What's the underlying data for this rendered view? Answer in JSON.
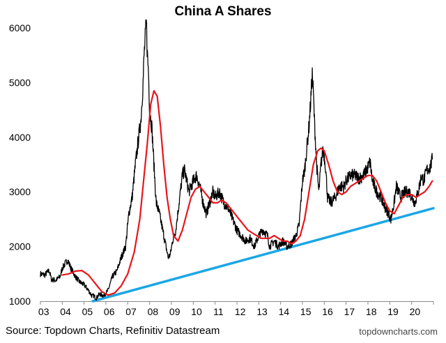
{
  "chart_data": {
    "type": "line",
    "title": "China A Shares",
    "xlabel": "",
    "ylabel": "",
    "xlim": [
      2003.0,
      2021.0
    ],
    "ylim": [
      1000,
      6000
    ],
    "x_tick_labels": [
      "03",
      "04",
      "05",
      "06",
      "07",
      "08",
      "09",
      "10",
      "11",
      "12",
      "13",
      "14",
      "15",
      "16",
      "17",
      "18",
      "19",
      "20"
    ],
    "y_ticks": [
      1000,
      2000,
      3000,
      4000,
      5000,
      6000
    ],
    "grid": false,
    "legend": "none",
    "colors": {
      "price": "#000000",
      "moving_average": "#e8151b",
      "trendline": "#1aa6e6"
    },
    "series": [
      {
        "key": "price",
        "x": [
          2003.0,
          2003.2,
          2003.4,
          2003.5,
          2003.7,
          2003.9,
          2004.0,
          2004.15,
          2004.25,
          2004.4,
          2004.6,
          2004.8,
          2005.0,
          2005.2,
          2005.35,
          2005.45,
          2005.55,
          2005.7,
          2005.9,
          2006.1,
          2006.3,
          2006.5,
          2006.7,
          2006.9,
          2007.05,
          2007.2,
          2007.35,
          2007.5,
          2007.6,
          2007.7,
          2007.75,
          2007.8,
          2007.85,
          2007.9,
          2007.95,
          2008.0,
          2008.1,
          2008.2,
          2008.3,
          2008.45,
          2008.6,
          2008.75,
          2008.85,
          2008.95,
          2009.05,
          2009.2,
          2009.35,
          2009.5,
          2009.6,
          2009.7,
          2009.8,
          2009.9,
          2010.0,
          2010.15,
          2010.3,
          2010.45,
          2010.6,
          2010.75,
          2010.9,
          2011.0,
          2011.2,
          2011.4,
          2011.6,
          2011.8,
          2012.0,
          2012.2,
          2012.4,
          2012.6,
          2012.8,
          2013.0,
          2013.2,
          2013.4,
          2013.5,
          2013.7,
          2013.9,
          2014.1,
          2014.3,
          2014.5,
          2014.7,
          2014.85,
          2015.0,
          2015.1,
          2015.2,
          2015.3,
          2015.4,
          2015.45,
          2015.5,
          2015.55,
          2015.65,
          2015.75,
          2015.85,
          2015.95,
          2016.05,
          2016.15,
          2016.3,
          2016.5,
          2016.7,
          2016.9,
          2017.0,
          2017.2,
          2017.4,
          2017.6,
          2017.8,
          2018.0,
          2018.1,
          2018.2,
          2018.4,
          2018.6,
          2018.8,
          2018.95,
          2019.05,
          2019.2,
          2019.3,
          2019.5,
          2019.7,
          2019.9,
          2020.0,
          2020.15,
          2020.3,
          2020.45,
          2020.55,
          2020.7,
          2020.85,
          2020.95
        ],
        "y": [
          1500,
          1480,
          1560,
          1400,
          1380,
          1450,
          1600,
          1700,
          1750,
          1600,
          1450,
          1350,
          1300,
          1200,
          1100,
          1100,
          1050,
          1130,
          1100,
          1200,
          1450,
          1550,
          1800,
          2000,
          2600,
          2900,
          3500,
          4000,
          4300,
          5000,
          5500,
          5800,
          6100,
          5500,
          5200,
          4500,
          4200,
          3500,
          2800,
          2600,
          2300,
          2000,
          1800,
          1850,
          2100,
          2300,
          2800,
          3300,
          3400,
          3200,
          3000,
          3100,
          3200,
          3300,
          3100,
          2800,
          2600,
          2800,
          3000,
          2900,
          3000,
          2800,
          2700,
          2500,
          2300,
          2200,
          2100,
          2150,
          2000,
          2200,
          2300,
          2200,
          2000,
          2100,
          2000,
          2100,
          2000,
          2050,
          2200,
          2400,
          3200,
          3400,
          3800,
          4200,
          4800,
          5150,
          4800,
          4300,
          3500,
          3000,
          3500,
          3800,
          3500,
          2900,
          2800,
          2900,
          3100,
          3100,
          3200,
          3300,
          3300,
          3250,
          3300,
          3450,
          3550,
          3200,
          3000,
          2900,
          2700,
          2600,
          2500,
          2800,
          3100,
          2900,
          3000,
          3000,
          2900,
          2800,
          3000,
          3300,
          3200,
          3400,
          3450,
          3600
        ]
      },
      {
        "key": "moving_average",
        "x": [
          2004.0,
          2004.3,
          2004.6,
          2004.9,
          2005.2,
          2005.5,
          2005.8,
          2006.1,
          2006.4,
          2006.7,
          2007.0,
          2007.3,
          2007.55,
          2007.75,
          2007.9,
          2008.05,
          2008.2,
          2008.35,
          2008.5,
          2008.65,
          2008.8,
          2008.95,
          2009.1,
          2009.3,
          2009.5,
          2009.7,
          2009.9,
          2010.1,
          2010.3,
          2010.5,
          2010.7,
          2010.9,
          2011.1,
          2011.3,
          2011.5,
          2011.7,
          2011.9,
          2012.1,
          2012.3,
          2012.5,
          2012.7,
          2012.9,
          2013.1,
          2013.3,
          2013.5,
          2013.7,
          2013.9,
          2014.1,
          2014.3,
          2014.5,
          2014.7,
          2014.9,
          2015.1,
          2015.3,
          2015.5,
          2015.7,
          2015.85,
          2016.0,
          2016.2,
          2016.4,
          2016.6,
          2016.8,
          2017.0,
          2017.2,
          2017.4,
          2017.6,
          2017.8,
          2018.0,
          2018.2,
          2018.4,
          2018.6,
          2018.8,
          2019.0,
          2019.2,
          2019.4,
          2019.6,
          2019.8,
          2020.0,
          2020.2,
          2020.4,
          2020.6,
          2020.8,
          2020.95
        ],
        "y": [
          1480,
          1500,
          1550,
          1560,
          1480,
          1330,
          1180,
          1110,
          1150,
          1280,
          1500,
          1900,
          2500,
          3300,
          3900,
          4600,
          4850,
          4750,
          4200,
          3500,
          2900,
          2500,
          2200,
          2100,
          2300,
          2600,
          2900,
          3050,
          3100,
          3000,
          2900,
          2800,
          2800,
          2850,
          2800,
          2700,
          2600,
          2500,
          2400,
          2300,
          2250,
          2200,
          2150,
          2150,
          2150,
          2200,
          2150,
          2100,
          2100,
          2050,
          2100,
          2200,
          2500,
          3000,
          3500,
          3750,
          3800,
          3750,
          3500,
          3200,
          3000,
          2950,
          3000,
          3100,
          3150,
          3200,
          3250,
          3300,
          3300,
          3200,
          3000,
          2800,
          2650,
          2600,
          2750,
          2900,
          2950,
          2950,
          2900,
          2950,
          3000,
          3100,
          3200
        ]
      },
      {
        "key": "trendline",
        "x": [
          2005.4,
          2021.0
        ],
        "y": [
          1000,
          2700
        ]
      }
    ]
  },
  "source_text": "Source: Topdown Charts, Refinitiv Datastream",
  "watermark_text": "topdowncharts.com"
}
